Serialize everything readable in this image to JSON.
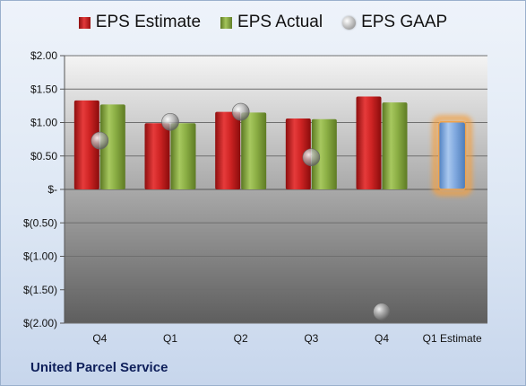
{
  "chart_data": {
    "type": "bar",
    "categories": [
      "Q4",
      "Q1",
      "Q2",
      "Q3",
      "Q4",
      "Q1 Estimate"
    ],
    "series": [
      {
        "name": "EPS Estimate",
        "values": [
          1.33,
          0.99,
          1.16,
          1.06,
          1.39,
          null
        ],
        "color": "#d42a2a"
      },
      {
        "name": "EPS Actual",
        "values": [
          1.27,
          0.99,
          1.15,
          1.05,
          1.3,
          null
        ],
        "color": "#8fb14a"
      },
      {
        "name": "EPS GAAP",
        "values": [
          0.73,
          1.01,
          1.16,
          0.48,
          -1.83,
          null
        ],
        "color": "#b8b8b8"
      }
    ],
    "estimate": {
      "category_index": 5,
      "value": 1.01,
      "color": "#7aa6dd",
      "glow_color": "#f5a040"
    },
    "y_ticks": [
      {
        "value": 2.0,
        "label": "$2.00"
      },
      {
        "value": 1.5,
        "label": "$1.50"
      },
      {
        "value": 1.0,
        "label": "$1.00"
      },
      {
        "value": 0.5,
        "label": "$0.50"
      },
      {
        "value": 0.0,
        "label": "$-"
      },
      {
        "value": -0.5,
        "label": "$(0.50)"
      },
      {
        "value": -1.0,
        "label": "$(1.00)"
      },
      {
        "value": -1.5,
        "label": "$(1.50)"
      },
      {
        "value": -2.0,
        "label": "$(2.00)"
      }
    ],
    "ylim": [
      -2.0,
      2.0
    ],
    "grid": true,
    "legend_position": "top"
  },
  "footer": {
    "company": "United Parcel Service"
  }
}
